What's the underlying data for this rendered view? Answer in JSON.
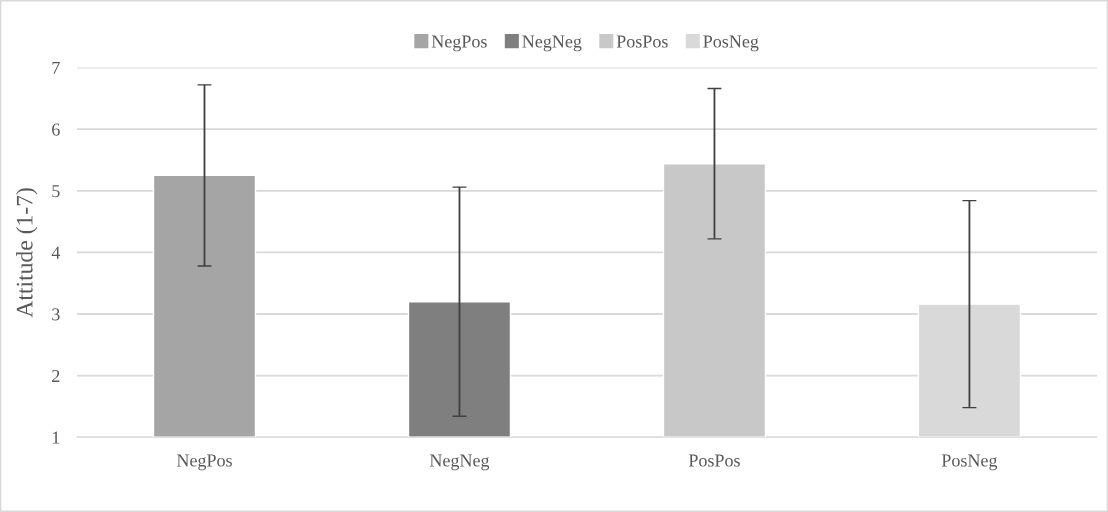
{
  "chart_data": {
    "type": "bar",
    "ylabel": "Attitude (1-7)",
    "categories": [
      "NegPos",
      "NegNeg",
      "PosPos",
      "PosNeg"
    ],
    "stacked": true,
    "series": [
      {
        "name": "NegPos",
        "color": "#a5a5a5",
        "values": [
          5.25,
          null,
          null,
          null
        ],
        "errors": [
          1.47,
          null,
          null,
          null
        ]
      },
      {
        "name": "NegNeg",
        "color": "#7f7f7f",
        "values": [
          null,
          3.2,
          null,
          null
        ],
        "errors": [
          null,
          1.86,
          null,
          null
        ]
      },
      {
        "name": "PosPos",
        "color": "#c8c8c8",
        "values": [
          null,
          null,
          5.44,
          null
        ],
        "errors": [
          null,
          null,
          1.22,
          null
        ]
      },
      {
        "name": "PosNeg",
        "color": "#d9d9d9",
        "values": [
          null,
          null,
          null,
          3.16
        ],
        "errors": [
          null,
          null,
          null,
          1.68
        ]
      }
    ],
    "ylim": [
      1,
      7
    ],
    "yticks": [
      1,
      2,
      3,
      4,
      5,
      6,
      7
    ],
    "grid": "y",
    "legend": "top"
  }
}
